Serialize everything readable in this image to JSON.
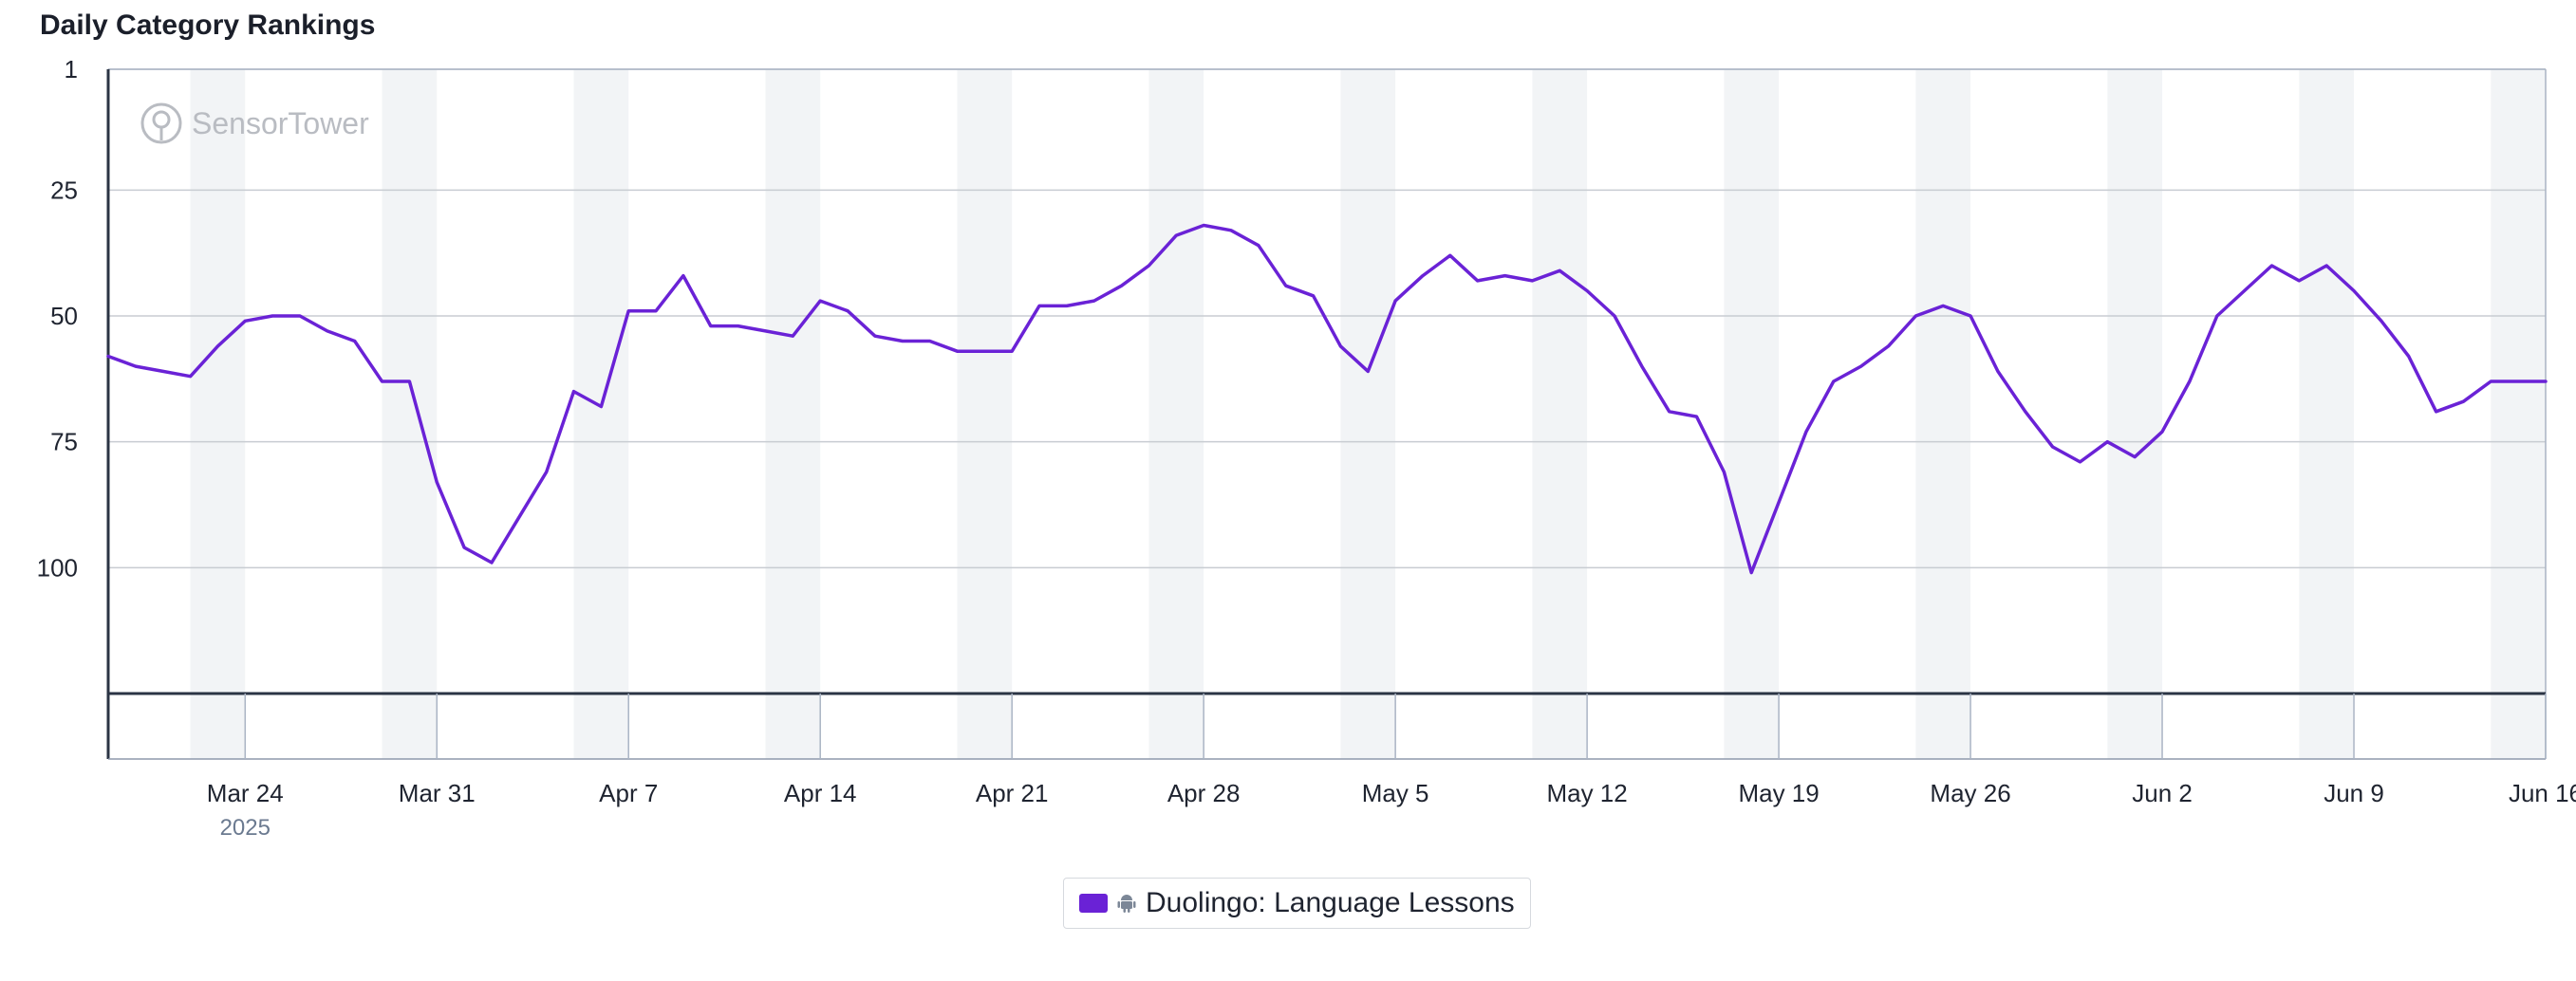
{
  "chart_data": {
    "type": "line",
    "title": "Daily Category Rankings",
    "watermark": "SensorTower",
    "y_axis": {
      "inverted": true,
      "ylim": [
        1,
        125
      ],
      "ticks": [
        1,
        25,
        50,
        75,
        100
      ]
    },
    "x_axis": {
      "start_date": "2025-03-19",
      "end_date": "2025-06-16",
      "tick_labels": [
        "Mar 24",
        "Mar 31",
        "Apr 7",
        "Apr 14",
        "Apr 21",
        "Apr 28",
        "May 5",
        "May 12",
        "May 19",
        "May 26",
        "Jun 2",
        "Jun 9",
        "Jun 16"
      ],
      "tick_dates": [
        "2025-03-24",
        "2025-03-31",
        "2025-04-07",
        "2025-04-14",
        "2025-04-21",
        "2025-04-28",
        "2025-05-05",
        "2025-05-12",
        "2025-05-19",
        "2025-05-26",
        "2025-06-02",
        "2025-06-09",
        "2025-06-16"
      ],
      "year_label": "2025",
      "weekend_shading": true
    },
    "grid": true,
    "legend_position": "bottom-center",
    "series": [
      {
        "name": "Duolingo: Language Lessons",
        "platform": "android-icon",
        "color": "#6a22d6",
        "x": [
          "2025-03-19",
          "2025-03-20",
          "2025-03-21",
          "2025-03-22",
          "2025-03-23",
          "2025-03-24",
          "2025-03-25",
          "2025-03-26",
          "2025-03-27",
          "2025-03-28",
          "2025-03-29",
          "2025-03-30",
          "2025-03-31",
          "2025-04-01",
          "2025-04-02",
          "2025-04-03",
          "2025-04-04",
          "2025-04-05",
          "2025-04-06",
          "2025-04-07",
          "2025-04-08",
          "2025-04-09",
          "2025-04-10",
          "2025-04-11",
          "2025-04-12",
          "2025-04-13",
          "2025-04-14",
          "2025-04-15",
          "2025-04-16",
          "2025-04-17",
          "2025-04-18",
          "2025-04-19",
          "2025-04-20",
          "2025-04-21",
          "2025-04-22",
          "2025-04-23",
          "2025-04-24",
          "2025-04-25",
          "2025-04-26",
          "2025-04-27",
          "2025-04-28",
          "2025-04-29",
          "2025-04-30",
          "2025-05-01",
          "2025-05-02",
          "2025-05-03",
          "2025-05-04",
          "2025-05-05",
          "2025-05-06",
          "2025-05-07",
          "2025-05-08",
          "2025-05-09",
          "2025-05-10",
          "2025-05-11",
          "2025-05-12",
          "2025-05-13",
          "2025-05-14",
          "2025-05-15",
          "2025-05-16",
          "2025-05-17",
          "2025-05-18",
          "2025-05-19",
          "2025-05-20",
          "2025-05-21",
          "2025-05-22",
          "2025-05-23",
          "2025-05-24",
          "2025-05-25",
          "2025-05-26",
          "2025-05-27",
          "2025-05-28",
          "2025-05-29",
          "2025-05-30",
          "2025-05-31",
          "2025-06-01",
          "2025-06-02",
          "2025-06-03",
          "2025-06-04",
          "2025-06-05",
          "2025-06-06",
          "2025-06-07",
          "2025-06-08",
          "2025-06-09",
          "2025-06-10",
          "2025-06-11",
          "2025-06-12",
          "2025-06-13",
          "2025-06-14",
          "2025-06-15",
          "2025-06-16"
        ],
        "values": [
          58,
          60,
          61,
          62,
          56,
          51,
          50,
          50,
          53,
          55,
          63,
          63,
          83,
          96,
          99,
          90,
          81,
          65,
          68,
          49,
          49,
          42,
          52,
          52,
          53,
          54,
          47,
          49,
          54,
          55,
          55,
          57,
          57,
          57,
          48,
          48,
          47,
          44,
          40,
          34,
          32,
          33,
          36,
          44,
          46,
          56,
          61,
          47,
          42,
          38,
          43,
          42,
          43,
          41,
          45,
          50,
          60,
          69,
          70,
          81,
          101,
          87,
          73,
          63,
          60,
          56,
          50,
          48,
          50,
          61,
          69,
          76,
          79,
          75,
          78,
          73,
          63,
          50,
          45,
          40,
          43,
          40,
          45,
          51,
          58,
          69,
          67,
          63,
          63,
          63
        ]
      }
    ]
  }
}
